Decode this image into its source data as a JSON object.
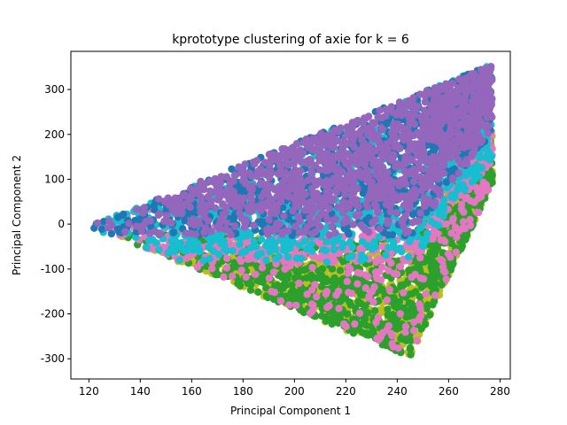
{
  "chart_data": {
    "type": "scatter",
    "title": "kprototype clustering of axie for k = 6",
    "xlabel": "Principal Component 1",
    "ylabel": "Principal Component 2",
    "xlim": [
      113,
      284
    ],
    "ylim": [
      -345,
      385
    ],
    "xticks": [
      120,
      140,
      160,
      180,
      200,
      220,
      240,
      260,
      280
    ],
    "yticks": [
      -300,
      -200,
      -100,
      0,
      100,
      200,
      300
    ],
    "grid": false,
    "legend": "none",
    "point_count": 5400,
    "series": [
      {
        "color": "#9467bd",
        "region": "upper-triangle-top",
        "x_range": [
          130,
          276
        ],
        "y_range": [
          -10,
          355
        ]
      },
      {
        "color": "#1f77b4",
        "region": "upper-triangle-top",
        "x_range": [
          121,
          275
        ],
        "y_range": [
          0,
          345
        ]
      },
      {
        "color": "#17becf",
        "region": "middle-band",
        "x_range": [
          138,
          270
        ],
        "y_range": [
          -80,
          250
        ]
      },
      {
        "color": "#e377c2",
        "region": "middle-band",
        "x_range": [
          132,
          266
        ],
        "y_range": [
          -130,
          100
        ]
      },
      {
        "color": "#2ca02c",
        "region": "lower-triangle",
        "x_range": [
          125,
          263
        ],
        "y_range": [
          -312,
          40
        ]
      },
      {
        "color": "#bcbd22",
        "region": "lower-triangle",
        "x_range": [
          119,
          262
        ],
        "y_range": [
          -305,
          30
        ]
      }
    ]
  }
}
